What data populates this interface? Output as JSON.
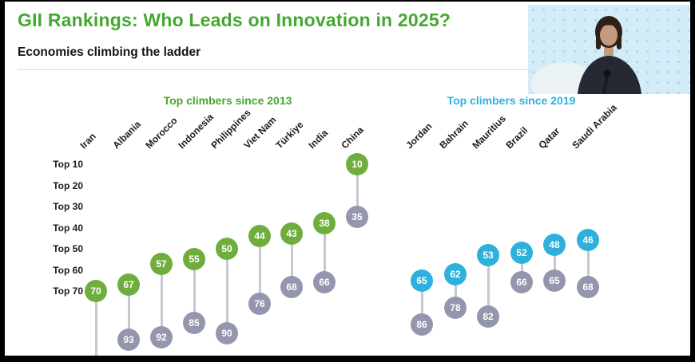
{
  "header": {
    "title": "GII Rankings: Who Leads on Innovation in 2025?",
    "subtitle": "Economies climbing the ladder"
  },
  "chart_data": {
    "type": "scatter",
    "variant": "lollipop",
    "title": "GII Rankings: Who Leads on Innovation in 2025?",
    "subtitle": "Economies climbing the ladder",
    "y_axis_labels": [
      "Top 10",
      "Top 20",
      "Top 30",
      "Top 40",
      "Top 50",
      "Top 60",
      "Top 70"
    ],
    "y_inverted": true,
    "previous_color": "#9496ae",
    "stem_color": "#c6c8d2",
    "groups": [
      {
        "label": "Top climbers since 2013",
        "color": "#6fae3e",
        "countries": [
          {
            "name": "Iran",
            "current": 70,
            "previous": null
          },
          {
            "name": "Albania",
            "current": 67,
            "previous": 93
          },
          {
            "name": "Morocco",
            "current": 57,
            "previous": 92
          },
          {
            "name": "Indonesia",
            "current": 55,
            "previous": 85
          },
          {
            "name": "Philippines",
            "current": 50,
            "previous": 90
          },
          {
            "name": "Viet Nam",
            "current": 44,
            "previous": 76
          },
          {
            "name": "Türkiye",
            "current": 43,
            "previous": 68
          },
          {
            "name": "India",
            "current": 38,
            "previous": 66
          },
          {
            "name": "China",
            "current": 10,
            "previous": 35
          }
        ]
      },
      {
        "label": "Top climbers since 2019",
        "color": "#2fb0dc",
        "countries": [
          {
            "name": "Jordan",
            "current": 65,
            "previous": 86
          },
          {
            "name": "Bahrain",
            "current": 62,
            "previous": 78
          },
          {
            "name": "Mauritius",
            "current": 53,
            "previous": 82
          },
          {
            "name": "Brazil",
            "current": 52,
            "previous": 66
          },
          {
            "name": "Qatar",
            "current": 48,
            "previous": 65
          },
          {
            "name": "Saudi Arabia",
            "current": 46,
            "previous": 68
          }
        ]
      }
    ]
  }
}
